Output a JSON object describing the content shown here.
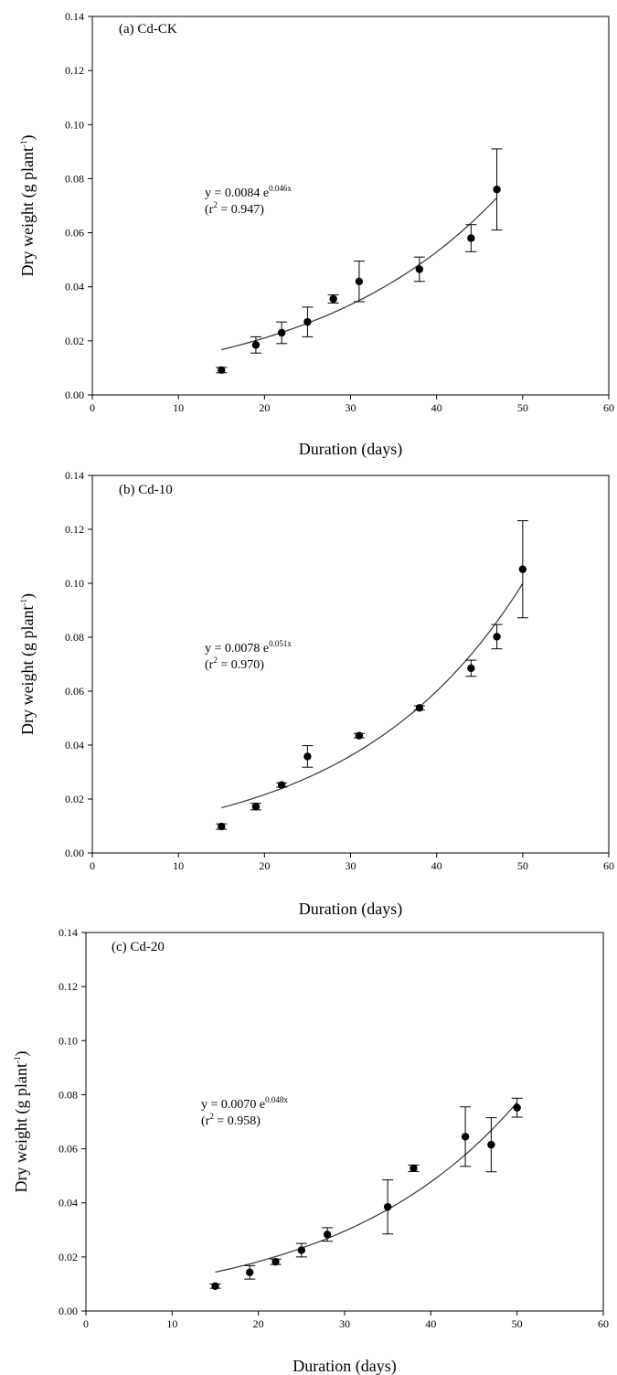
{
  "chart_data": [
    {
      "type": "scatter",
      "panel_label": "(a) Cd-CK",
      "xlabel": "Duration (days)",
      "ylabel": {
        "main": "Dry weight (g plant",
        "sup": "-1",
        "close": ")"
      },
      "xlim": [
        0,
        60
      ],
      "ylim": [
        0,
        0.14
      ],
      "xticks": [
        "0",
        "10",
        "20",
        "30",
        "40",
        "50",
        "60"
      ],
      "yticks": [
        "0.00",
        "0.02",
        "0.04",
        "0.06",
        "0.08",
        "0.10",
        "0.12",
        "0.14"
      ],
      "points": [
        {
          "x": 15,
          "y": 0.0092,
          "err": 0.001
        },
        {
          "x": 19,
          "y": 0.0185,
          "err": 0.003
        },
        {
          "x": 22,
          "y": 0.023,
          "err": 0.004
        },
        {
          "x": 25,
          "y": 0.027,
          "err": 0.0055
        },
        {
          "x": 28,
          "y": 0.0355,
          "err": 0.0015
        },
        {
          "x": 31,
          "y": 0.042,
          "err": 0.0075
        },
        {
          "x": 38,
          "y": 0.0465,
          "err": 0.0045
        },
        {
          "x": 44,
          "y": 0.058,
          "err": 0.005
        },
        {
          "x": 47,
          "y": 0.076,
          "err": 0.015
        }
      ],
      "fit": {
        "a": 0.0084,
        "b": 0.046,
        "x_range": [
          15,
          47
        ]
      },
      "equation": {
        "prefix": "y = 0.0084 e",
        "exponent": "0.046x",
        "r2_open": "(r",
        "r2_sup": "2",
        "r2_rest": " = 0.947)"
      },
      "grid": false,
      "legend": "none"
    },
    {
      "type": "scatter",
      "panel_label": "(b) Cd-10",
      "xlabel": "Duration (days)",
      "ylabel": {
        "main": "Dry weight (g plant",
        "sup": "-1",
        "close": ")"
      },
      "xlim": [
        0,
        60
      ],
      "ylim": [
        0,
        0.14
      ],
      "xticks": [
        "0",
        "10",
        "20",
        "30",
        "40",
        "50",
        "60"
      ],
      "yticks": [
        "0.00",
        "0.02",
        "0.04",
        "0.06",
        "0.08",
        "0.10",
        "0.12",
        "0.14"
      ],
      "points": [
        {
          "x": 15,
          "y": 0.0098,
          "err": 0.001
        },
        {
          "x": 19,
          "y": 0.0172,
          "err": 0.0012
        },
        {
          "x": 22,
          "y": 0.0252,
          "err": 0.0008
        },
        {
          "x": 25,
          "y": 0.0358,
          "err": 0.004
        },
        {
          "x": 31,
          "y": 0.0435,
          "err": 0.0008
        },
        {
          "x": 38,
          "y": 0.0538,
          "err": 0.0008
        },
        {
          "x": 44,
          "y": 0.0685,
          "err": 0.003
        },
        {
          "x": 47,
          "y": 0.0802,
          "err": 0.0045
        },
        {
          "x": 50,
          "y": 0.1052,
          "err": 0.018
        }
      ],
      "fit": {
        "a": 0.0078,
        "b": 0.051,
        "x_range": [
          15,
          50
        ]
      },
      "equation": {
        "prefix": "y = 0.0078 e",
        "exponent": "0.051x",
        "r2_open": "(r",
        "r2_sup": "2",
        "r2_rest": " = 0.970)"
      },
      "grid": false,
      "legend": "none"
    },
    {
      "type": "scatter",
      "panel_label": "(c) Cd-20",
      "xlabel": "Duration (days)",
      "ylabel": {
        "main": "Dry weight (g plant",
        "sup": "-1",
        "close": ")"
      },
      "xlim": [
        0,
        60
      ],
      "ylim": [
        0,
        0.14
      ],
      "xticks": [
        "0",
        "10",
        "20",
        "30",
        "40",
        "50",
        "60"
      ],
      "yticks": [
        "0.00",
        "0.02",
        "0.04",
        "0.06",
        "0.08",
        "0.10",
        "0.12",
        "0.14"
      ],
      "points": [
        {
          "x": 15,
          "y": 0.0092,
          "err": 0.0008
        },
        {
          "x": 19,
          "y": 0.0143,
          "err": 0.0025
        },
        {
          "x": 22,
          "y": 0.0182,
          "err": 0.001
        },
        {
          "x": 25,
          "y": 0.0225,
          "err": 0.0025
        },
        {
          "x": 28,
          "y": 0.0283,
          "err": 0.0025
        },
        {
          "x": 35,
          "y": 0.0385,
          "err": 0.01
        },
        {
          "x": 38,
          "y": 0.0528,
          "err": 0.0012
        },
        {
          "x": 44,
          "y": 0.0645,
          "err": 0.011
        },
        {
          "x": 47,
          "y": 0.0615,
          "err": 0.01
        },
        {
          "x": 50,
          "y": 0.0752,
          "err": 0.0035
        }
      ],
      "fit": {
        "a": 0.007,
        "b": 0.048,
        "x_range": [
          15,
          50
        ]
      },
      "equation": {
        "prefix": "y = 0.0070 e",
        "exponent": "0.048x",
        "r2_open": "(r",
        "r2_sup": "2",
        "r2_rest": " = 0.958)"
      },
      "grid": false,
      "legend": "none"
    }
  ]
}
